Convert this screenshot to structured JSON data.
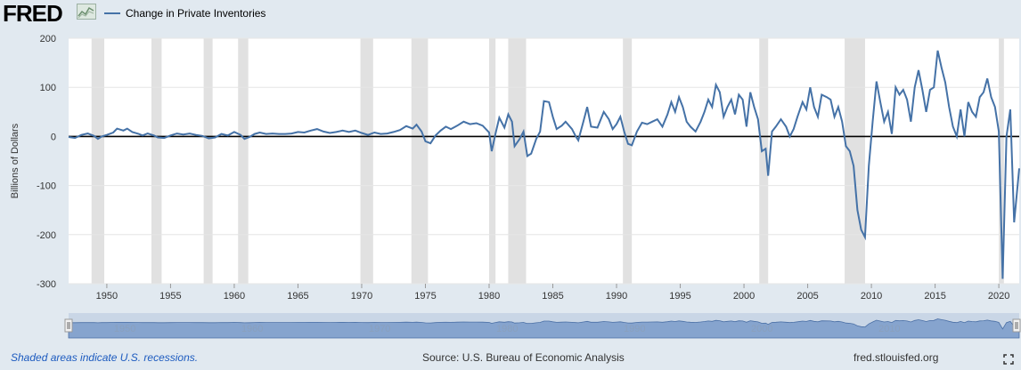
{
  "header": {
    "logo_text": "FRED",
    "legend_label": "Change in Private Inventories",
    "series_color": "#4572a7"
  },
  "footer": {
    "recession_note": "Shaded areas indicate U.S. recessions.",
    "source": "Source: U.S. Bureau of Economic Analysis",
    "site": "fred.stlouisfed.org"
  },
  "icons": [
    "fred-logo-chart-icon",
    "fullscreen-icon"
  ],
  "chart_data": {
    "type": "line",
    "ylabel": "Billions of Dollars",
    "ylim": [
      -300,
      200
    ],
    "xlim": [
      1947.0,
      2021.6
    ],
    "yticks": [
      200,
      100,
      0,
      -100,
      -200,
      -300
    ],
    "xticks": [
      1950,
      1955,
      1960,
      1965,
      1970,
      1975,
      1980,
      1985,
      1990,
      1995,
      2000,
      2005,
      2010,
      2015,
      2020
    ],
    "zero_line": true,
    "recessions": [
      [
        1948.8,
        1949.8
      ],
      [
        1953.5,
        1954.3
      ],
      [
        1957.6,
        1958.3
      ],
      [
        1960.3,
        1961.1
      ],
      [
        1969.9,
        1970.9
      ],
      [
        1973.9,
        1975.2
      ],
      [
        1980.0,
        1980.5
      ],
      [
        1981.5,
        1982.9
      ],
      [
        1990.5,
        1991.2
      ],
      [
        2001.2,
        2001.9
      ],
      [
        2007.9,
        2009.5
      ],
      [
        2020.0,
        2020.4
      ]
    ],
    "series": [
      {
        "values": [
          [
            1947.0,
            -1
          ],
          [
            1947.5,
            -3
          ],
          [
            1948.0,
            3
          ],
          [
            1948.5,
            6
          ],
          [
            1949.0,
            1
          ],
          [
            1949.3,
            -5
          ],
          [
            1949.6,
            0
          ],
          [
            1950.0,
            3
          ],
          [
            1950.5,
            8
          ],
          [
            1950.8,
            16
          ],
          [
            1951.3,
            12
          ],
          [
            1951.6,
            16
          ],
          [
            1952.0,
            9
          ],
          [
            1952.5,
            5
          ],
          [
            1952.8,
            2
          ],
          [
            1953.2,
            6
          ],
          [
            1953.7,
            2
          ],
          [
            1954.0,
            -2
          ],
          [
            1954.5,
            -3
          ],
          [
            1955.0,
            2
          ],
          [
            1955.5,
            6
          ],
          [
            1956.0,
            4
          ],
          [
            1956.5,
            6
          ],
          [
            1957.0,
            3
          ],
          [
            1957.5,
            1
          ],
          [
            1958.0,
            -4
          ],
          [
            1958.5,
            -2
          ],
          [
            1959.0,
            5
          ],
          [
            1959.5,
            2
          ],
          [
            1960.0,
            9
          ],
          [
            1960.5,
            3
          ],
          [
            1960.8,
            -5
          ],
          [
            1961.2,
            -1
          ],
          [
            1961.6,
            5
          ],
          [
            1962.0,
            8
          ],
          [
            1962.5,
            5
          ],
          [
            1963.0,
            6
          ],
          [
            1963.5,
            5
          ],
          [
            1964.0,
            5
          ],
          [
            1964.5,
            6
          ],
          [
            1965.0,
            9
          ],
          [
            1965.5,
            8
          ],
          [
            1966.0,
            12
          ],
          [
            1966.5,
            15
          ],
          [
            1967.0,
            10
          ],
          [
            1967.5,
            7
          ],
          [
            1968.0,
            9
          ],
          [
            1968.5,
            12
          ],
          [
            1969.0,
            9
          ],
          [
            1969.5,
            12
          ],
          [
            1970.0,
            7
          ],
          [
            1970.5,
            3
          ],
          [
            1971.0,
            8
          ],
          [
            1971.5,
            5
          ],
          [
            1972.0,
            6
          ],
          [
            1972.5,
            9
          ],
          [
            1973.0,
            13
          ],
          [
            1973.5,
            21
          ],
          [
            1974.0,
            16
          ],
          [
            1974.3,
            24
          ],
          [
            1974.7,
            10
          ],
          [
            1975.0,
            -10
          ],
          [
            1975.4,
            -14
          ],
          [
            1975.8,
            2
          ],
          [
            1976.2,
            12
          ],
          [
            1976.6,
            20
          ],
          [
            1977.0,
            15
          ],
          [
            1977.5,
            22
          ],
          [
            1978.0,
            30
          ],
          [
            1978.5,
            25
          ],
          [
            1979.0,
            27
          ],
          [
            1979.5,
            22
          ],
          [
            1980.0,
            8
          ],
          [
            1980.2,
            -30
          ],
          [
            1980.5,
            5
          ],
          [
            1980.8,
            38
          ],
          [
            1981.2,
            18
          ],
          [
            1981.5,
            45
          ],
          [
            1981.8,
            30
          ],
          [
            1982.0,
            -20
          ],
          [
            1982.4,
            -5
          ],
          [
            1982.7,
            10
          ],
          [
            1983.0,
            -40
          ],
          [
            1983.3,
            -35
          ],
          [
            1983.7,
            -5
          ],
          [
            1984.0,
            10
          ],
          [
            1984.3,
            72
          ],
          [
            1984.7,
            70
          ],
          [
            1985.0,
            40
          ],
          [
            1985.3,
            15
          ],
          [
            1985.7,
            22
          ],
          [
            1986.0,
            30
          ],
          [
            1986.5,
            15
          ],
          [
            1986.8,
            0
          ],
          [
            1987.0,
            -8
          ],
          [
            1987.4,
            30
          ],
          [
            1987.7,
            60
          ],
          [
            1988.0,
            20
          ],
          [
            1988.5,
            18
          ],
          [
            1989.0,
            50
          ],
          [
            1989.4,
            35
          ],
          [
            1989.7,
            15
          ],
          [
            1990.0,
            25
          ],
          [
            1990.3,
            40
          ],
          [
            1990.6,
            10
          ],
          [
            1990.9,
            -15
          ],
          [
            1991.2,
            -18
          ],
          [
            1991.6,
            10
          ],
          [
            1992.0,
            28
          ],
          [
            1992.4,
            25
          ],
          [
            1992.8,
            30
          ],
          [
            1993.2,
            35
          ],
          [
            1993.6,
            20
          ],
          [
            1994.0,
            45
          ],
          [
            1994.3,
            70
          ],
          [
            1994.6,
            50
          ],
          [
            1994.9,
            80
          ],
          [
            1995.2,
            60
          ],
          [
            1995.5,
            30
          ],
          [
            1995.8,
            20
          ],
          [
            1996.2,
            10
          ],
          [
            1996.6,
            30
          ],
          [
            1996.9,
            50
          ],
          [
            1997.2,
            75
          ],
          [
            1997.5,
            60
          ],
          [
            1997.8,
            105
          ],
          [
            1998.1,
            90
          ],
          [
            1998.4,
            40
          ],
          [
            1998.7,
            60
          ],
          [
            1999.0,
            75
          ],
          [
            1999.3,
            45
          ],
          [
            1999.6,
            85
          ],
          [
            1999.9,
            75
          ],
          [
            2000.2,
            20
          ],
          [
            2000.5,
            90
          ],
          [
            2000.8,
            60
          ],
          [
            2001.1,
            35
          ],
          [
            2001.4,
            -30
          ],
          [
            2001.7,
            -25
          ],
          [
            2001.9,
            -80
          ],
          [
            2002.2,
            10
          ],
          [
            2002.5,
            20
          ],
          [
            2002.9,
            35
          ],
          [
            2003.3,
            20
          ],
          [
            2003.6,
            0
          ],
          [
            2003.9,
            15
          ],
          [
            2004.2,
            40
          ],
          [
            2004.6,
            70
          ],
          [
            2004.9,
            55
          ],
          [
            2005.2,
            100
          ],
          [
            2005.5,
            60
          ],
          [
            2005.8,
            40
          ],
          [
            2006.1,
            85
          ],
          [
            2006.5,
            80
          ],
          [
            2006.8,
            75
          ],
          [
            2007.1,
            40
          ],
          [
            2007.4,
            60
          ],
          [
            2007.7,
            30
          ],
          [
            2008.0,
            -20
          ],
          [
            2008.3,
            -30
          ],
          [
            2008.6,
            -60
          ],
          [
            2008.9,
            -150
          ],
          [
            2009.2,
            -190
          ],
          [
            2009.5,
            -205
          ],
          [
            2009.8,
            -60
          ],
          [
            2010.1,
            30
          ],
          [
            2010.4,
            112
          ],
          [
            2010.7,
            70
          ],
          [
            2011.0,
            30
          ],
          [
            2011.3,
            50
          ],
          [
            2011.6,
            5
          ],
          [
            2011.9,
            100
          ],
          [
            2012.2,
            85
          ],
          [
            2012.5,
            95
          ],
          [
            2012.8,
            75
          ],
          [
            2013.1,
            30
          ],
          [
            2013.4,
            100
          ],
          [
            2013.7,
            135
          ],
          [
            2014.0,
            95
          ],
          [
            2014.3,
            50
          ],
          [
            2014.6,
            95
          ],
          [
            2014.9,
            100
          ],
          [
            2015.2,
            175
          ],
          [
            2015.5,
            140
          ],
          [
            2015.8,
            110
          ],
          [
            2016.1,
            60
          ],
          [
            2016.4,
            20
          ],
          [
            2016.7,
            0
          ],
          [
            2017.0,
            55
          ],
          [
            2017.3,
            0
          ],
          [
            2017.6,
            70
          ],
          [
            2017.9,
            50
          ],
          [
            2018.2,
            40
          ],
          [
            2018.5,
            80
          ],
          [
            2018.8,
            90
          ],
          [
            2019.1,
            118
          ],
          [
            2019.4,
            80
          ],
          [
            2019.7,
            60
          ],
          [
            2020.0,
            10
          ],
          [
            2020.3,
            -290
          ],
          [
            2020.6,
            0
          ],
          [
            2020.9,
            55
          ],
          [
            2021.2,
            -175
          ],
          [
            2021.6,
            -65
          ]
        ]
      }
    ]
  }
}
